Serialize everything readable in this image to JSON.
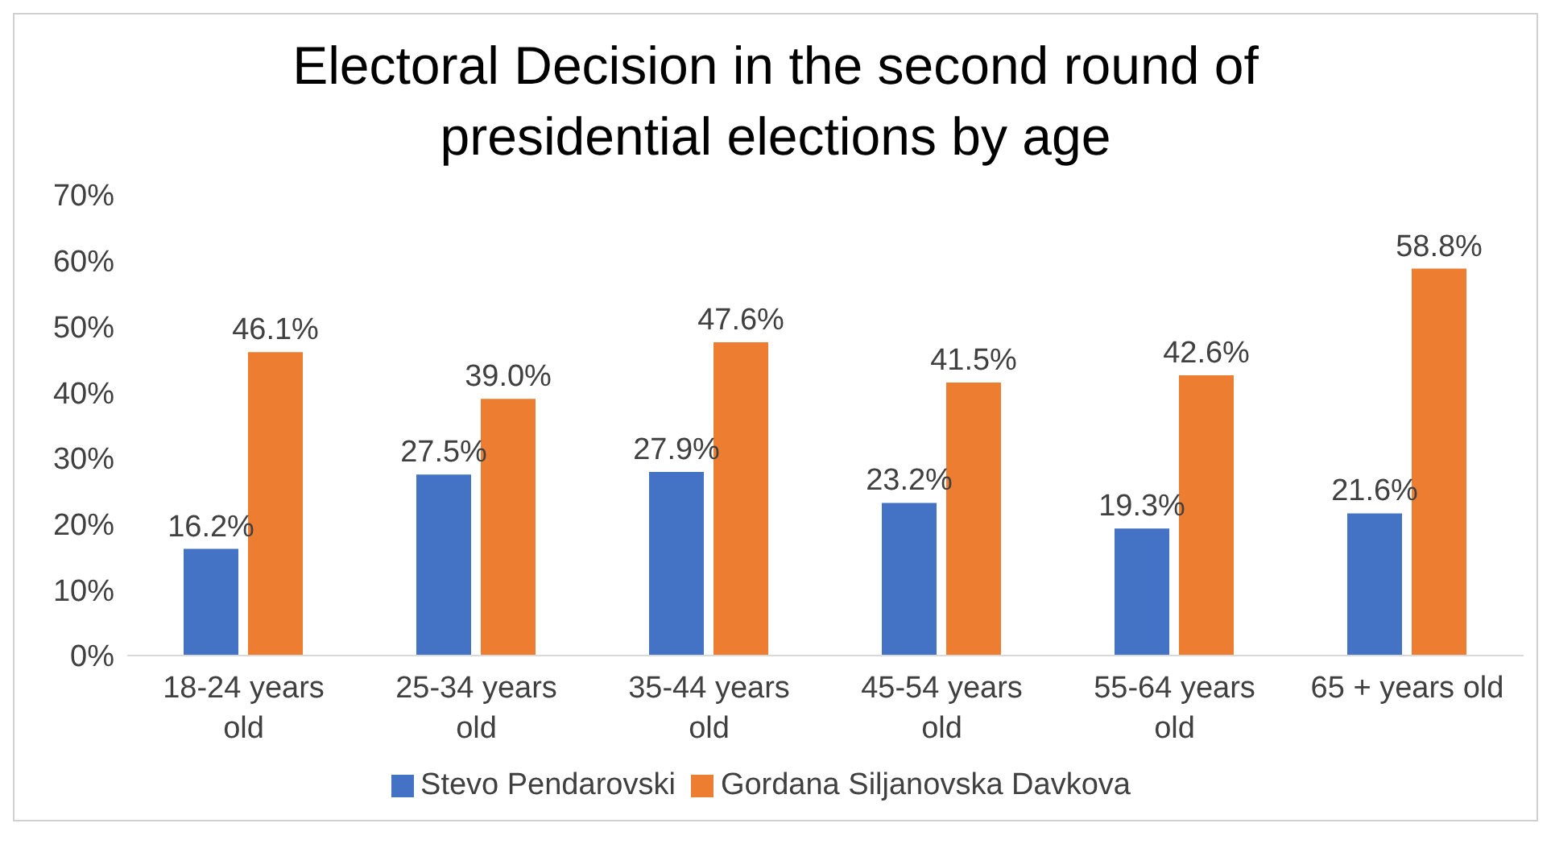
{
  "chart_data": {
    "type": "bar",
    "title": "Electoral Decision in the second round of presidential elections by age",
    "categories": [
      "18-24 years old",
      "25-34 years old",
      "35-44 years old",
      "45-54 years old",
      "55-64 years old",
      "65 + years old"
    ],
    "series": [
      {
        "name": "Stevo Pendarovski",
        "color": "#4472c4",
        "values": [
          16.2,
          27.5,
          27.9,
          23.2,
          19.3,
          21.6
        ],
        "value_labels": [
          "16.2%",
          "27.5%",
          "27.9%",
          "23.2%",
          "19.3%",
          "21.6%"
        ]
      },
      {
        "name": "Gordana Siljanovska Davkova",
        "color": "#ed7d31",
        "values": [
          46.1,
          39.0,
          47.6,
          41.5,
          42.6,
          58.8
        ],
        "value_labels": [
          "46.1%",
          "39.0%",
          "47.6%",
          "41.5%",
          "42.6%",
          "58.8%"
        ]
      }
    ],
    "ylim": [
      0,
      70
    ],
    "yticks": [
      {
        "value": 0,
        "label": "0%"
      },
      {
        "value": 10,
        "label": "10%"
      },
      {
        "value": 20,
        "label": "20%"
      },
      {
        "value": 30,
        "label": "30%"
      },
      {
        "value": 40,
        "label": "40%"
      },
      {
        "value": 50,
        "label": "50%"
      },
      {
        "value": 60,
        "label": "60%"
      },
      {
        "value": 70,
        "label": "70%"
      }
    ],
    "grid": false,
    "legend": "bottom"
  }
}
